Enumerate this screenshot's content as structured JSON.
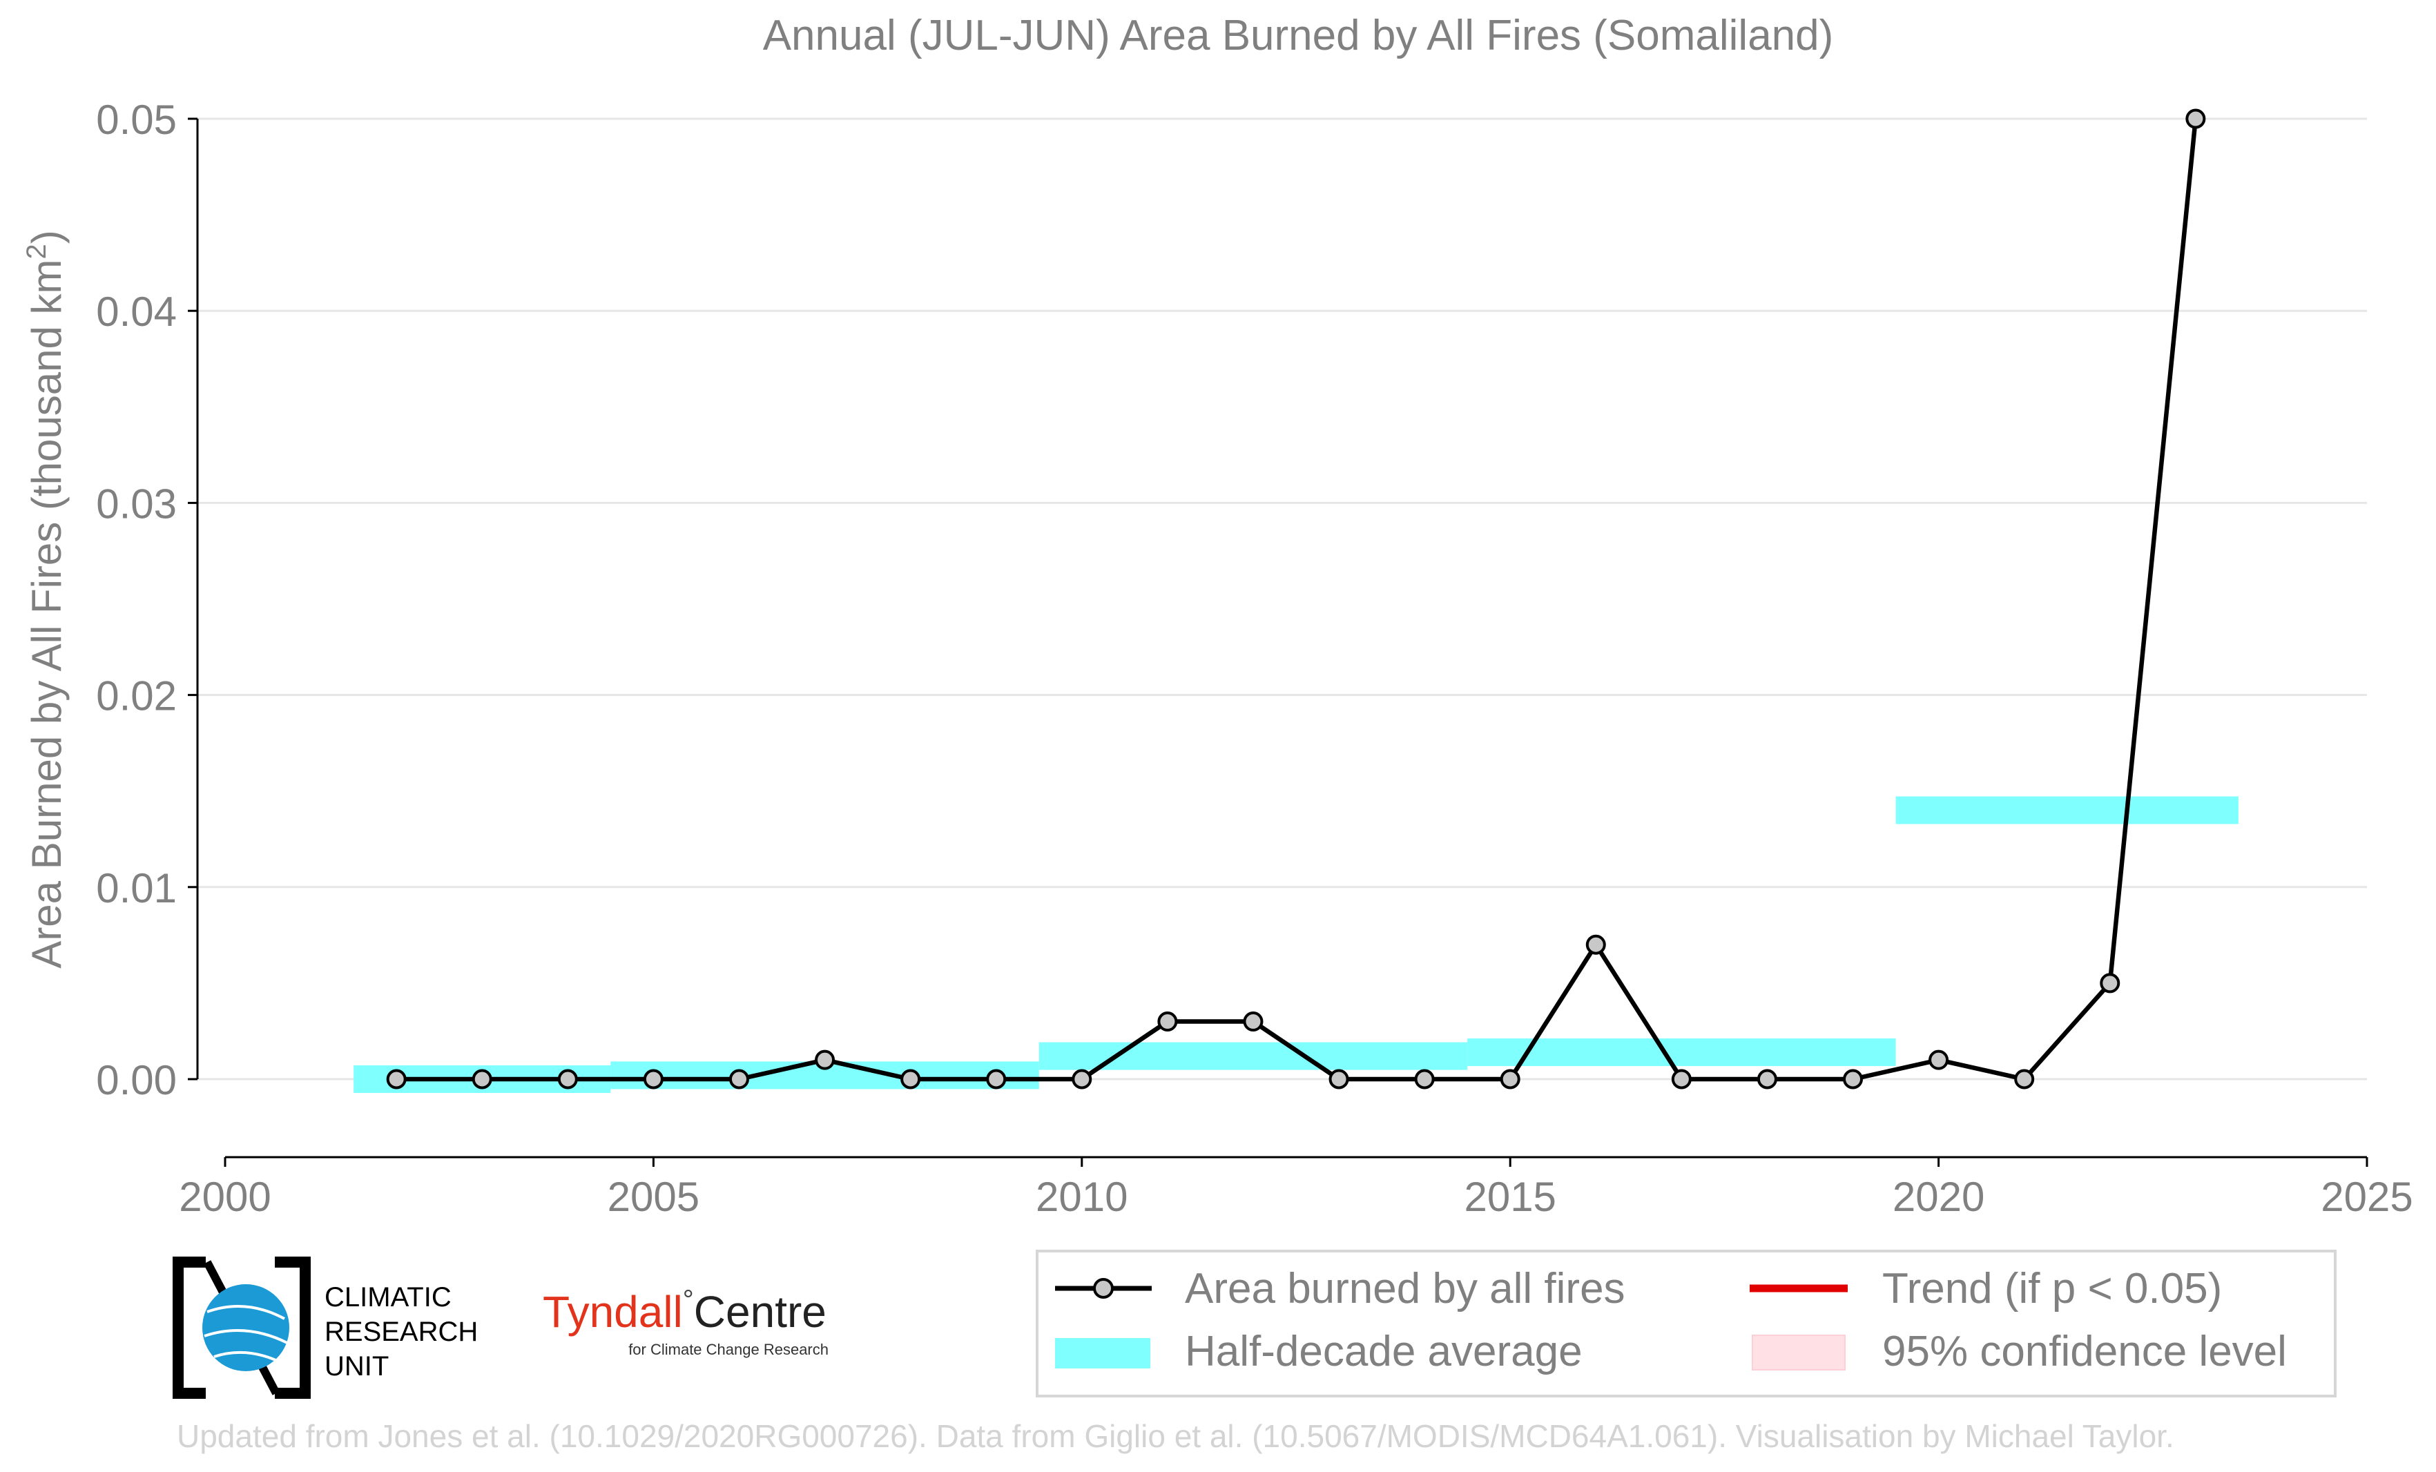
{
  "colors": {
    "line": "#000000",
    "marker_fill": "#c8c8c8",
    "half_decade": "#80ffff",
    "trend": "#e00000",
    "confidence": "#ffe0e4",
    "text": "#808080",
    "grid": "#e6e6e6",
    "tyndall_red": "#e2341d"
  },
  "chart_data": {
    "type": "line",
    "title": "Annual (JUL-JUN) Area Burned by All Fires (Somaliland)",
    "ylabel_main": "Area Burned by All Fires (thousand km",
    "ylabel_sup": "2",
    "ylabel_end": ")",
    "xlim": [
      2000,
      2025
    ],
    "ylim": [
      -0.004,
      0.0515
    ],
    "x_ticks": [
      2000,
      2005,
      2010,
      2015,
      2020,
      2025
    ],
    "x_tick_labels": [
      "2000",
      "2005",
      "2010",
      "2015",
      "2020",
      "2025"
    ],
    "y_ticks": [
      0.0,
      0.01,
      0.02,
      0.03,
      0.04,
      0.05
    ],
    "y_tick_labels": [
      "0.00",
      "0.01",
      "0.02",
      "0.03",
      "0.04",
      "0.05"
    ],
    "grid": true,
    "series": [
      {
        "name": "Area burned by all fires",
        "x": [
          2002,
          2003,
          2004,
          2005,
          2006,
          2007,
          2008,
          2009,
          2010,
          2011,
          2012,
          2013,
          2014,
          2015,
          2016,
          2017,
          2018,
          2019,
          2020,
          2021,
          2022,
          2023
        ],
        "y": [
          0.0,
          0.0,
          0.0,
          0.0,
          0.0,
          0.001,
          0.0,
          0.0,
          0.0,
          0.003,
          0.003,
          0.0,
          0.0,
          0.0,
          0.007,
          0.0,
          0.0,
          0.0,
          0.001,
          0.0,
          0.005,
          0.05
        ]
      }
    ],
    "half_decade_average": [
      {
        "x_start": 2001.5,
        "x_end": 2004.5,
        "value": 0.0
      },
      {
        "x_start": 2004.5,
        "x_end": 2009.5,
        "value": 0.0002
      },
      {
        "x_start": 2009.5,
        "x_end": 2014.5,
        "value": 0.0012
      },
      {
        "x_start": 2014.5,
        "x_end": 2019.5,
        "value": 0.0014
      },
      {
        "x_start": 2019.5,
        "x_end": 2023.5,
        "value": 0.014
      }
    ],
    "legend": {
      "placement": "bottom-right",
      "entries": [
        {
          "label": "Area burned by all fires",
          "kind": "line-marker"
        },
        {
          "label": "Trend (if p < 0.05)",
          "kind": "trend"
        },
        {
          "label": "Half-decade average",
          "kind": "band"
        },
        {
          "label": "95% confidence level",
          "kind": "confidence"
        }
      ]
    }
  },
  "logos": {
    "cru_line1": "CLIMATIC",
    "cru_line2": "RESEARCH",
    "cru_line3": "UNIT",
    "tyndall_name": "Tyndall",
    "tyndall_degree": "°",
    "tyndall_centre": "Centre",
    "tyndall_sub": "for Climate Change Research"
  },
  "footer": "Updated from Jones et al. (10.1029/2020RG000726). Data from Giglio et al. (10.5067/MODIS/MCD64A1.061). Visualisation by Michael Taylor."
}
